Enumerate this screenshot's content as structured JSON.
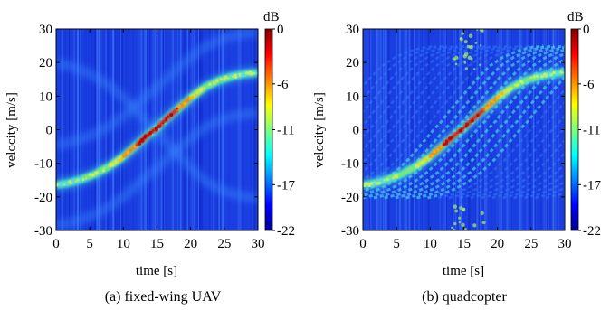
{
  "chart_data": [
    {
      "type": "heatmap",
      "caption": "(a) fixed-wing UAV",
      "xlabel": "time [s]",
      "ylabel": "velocity [m/s]",
      "xlim": [
        0,
        30
      ],
      "ylim": [
        -30,
        30
      ],
      "xticks": [
        0,
        5,
        10,
        15,
        20,
        25,
        30
      ],
      "yticks": [
        -30,
        -20,
        -10,
        0,
        10,
        20,
        30
      ],
      "colorbar": {
        "label": "dB",
        "range": [
          -22,
          0
        ],
        "ticks": [
          0,
          -6,
          -11,
          -17,
          -22
        ]
      },
      "micro_doppler": false,
      "main_trace": {
        "description_free": true,
        "points": [
          [
            0,
            -16.5
          ],
          [
            2,
            -15.8
          ],
          [
            4,
            -14.6
          ],
          [
            6,
            -13.0
          ],
          [
            8,
            -10.8
          ],
          [
            10,
            -8.0
          ],
          [
            12,
            -4.5
          ],
          [
            14,
            -1.0
          ],
          [
            15,
            0.5
          ],
          [
            16,
            2.5
          ],
          [
            18,
            6.0
          ],
          [
            20,
            9.5
          ],
          [
            22,
            12.5
          ],
          [
            24,
            14.5
          ],
          [
            26,
            15.8
          ],
          [
            28,
            16.6
          ],
          [
            30,
            17.0
          ]
        ]
      },
      "grid": false
    },
    {
      "type": "heatmap",
      "caption": "(b) quadcopter",
      "xlabel": "time [s]",
      "ylabel": "velocity [m/s]",
      "xlim": [
        0,
        30
      ],
      "ylim": [
        -30,
        30
      ],
      "xticks": [
        0,
        5,
        10,
        15,
        20,
        25,
        30
      ],
      "yticks": [
        -30,
        -20,
        -10,
        0,
        10,
        20,
        30
      ],
      "colorbar": {
        "label": "dB",
        "range": [
          -22,
          0
        ],
        "ticks": [
          0,
          -6,
          -11,
          -17,
          -22
        ]
      },
      "micro_doppler": true,
      "main_trace": {
        "description_free": true,
        "points": [
          [
            0,
            -16.5
          ],
          [
            2,
            -15.8
          ],
          [
            4,
            -14.6
          ],
          [
            6,
            -13.0
          ],
          [
            8,
            -10.8
          ],
          [
            10,
            -8.0
          ],
          [
            12,
            -4.5
          ],
          [
            14,
            -1.0
          ],
          [
            15,
            0.5
          ],
          [
            16,
            2.5
          ],
          [
            18,
            6.0
          ],
          [
            20,
            9.5
          ],
          [
            22,
            12.5
          ],
          [
            24,
            14.5
          ],
          [
            26,
            15.8
          ],
          [
            28,
            16.6
          ],
          [
            30,
            17.0
          ]
        ]
      },
      "grid": false
    }
  ]
}
